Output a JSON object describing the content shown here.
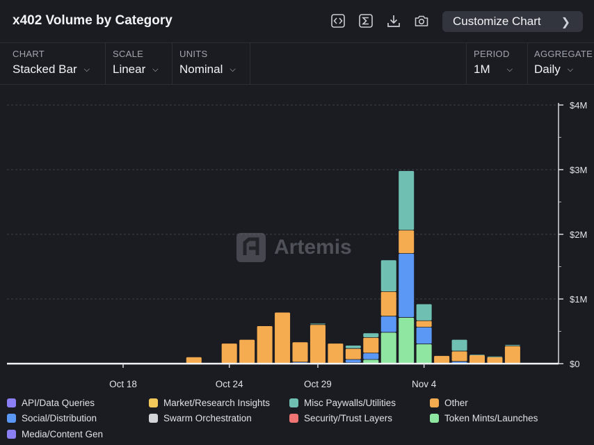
{
  "header": {
    "title": "x402 Volume by Category",
    "customize_label": "Customize Chart",
    "icons": [
      "code-icon",
      "sigma-icon",
      "download-icon",
      "camera-icon"
    ]
  },
  "controls": {
    "chart": {
      "label": "CHART",
      "value": "Stacked Bar"
    },
    "scale": {
      "label": "SCALE",
      "value": "Linear"
    },
    "units": {
      "label": "UNITS",
      "value": "Nominal"
    },
    "period": {
      "label": "PERIOD",
      "value": "1M"
    },
    "aggregate": {
      "label": "AGGREGATE",
      "value": "Daily"
    }
  },
  "watermark": {
    "text": "Artemis"
  },
  "legend": [
    {
      "name": "API/Data Queries",
      "color": "#8b7ff5"
    },
    {
      "name": "Market/Research Insights",
      "color": "#f2c85b"
    },
    {
      "name": "Misc Paywalls/Utilities",
      "color": "#6fbfb3"
    },
    {
      "name": "Other",
      "color": "#f5ab4f"
    },
    {
      "name": "Social/Distribution",
      "color": "#5b97f5"
    },
    {
      "name": "Swarm Orchestration",
      "color": "#d3d4d8"
    },
    {
      "name": "Security/Trust Layers",
      "color": "#ef7474"
    },
    {
      "name": "Token Mints/Launches",
      "color": "#8ee6a1"
    },
    {
      "name": "Media/Content Gen",
      "color": "#8b7ff5"
    }
  ],
  "chart_data": {
    "type": "bar",
    "stacked": true,
    "scale": "linear",
    "ylim": [
      0,
      4000000
    ],
    "y_ticks": [
      {
        "value": 0,
        "label": "$0"
      },
      {
        "value": 1000000,
        "label": "$1M"
      },
      {
        "value": 2000000,
        "label": "$2M"
      },
      {
        "value": 3000000,
        "label": "$3M"
      },
      {
        "value": 4000000,
        "label": "$4M"
      }
    ],
    "x_axis_labels": [
      {
        "date": "Oct 18",
        "label": "Oct 18"
      },
      {
        "date": "Oct 24",
        "label": "Oct 24"
      },
      {
        "date": "Oct 29",
        "label": "Oct 29"
      },
      {
        "date": "Nov 4",
        "label": "Nov 4"
      }
    ],
    "x": [
      "Oct 21",
      "Oct 22",
      "Oct 23",
      "Oct 24",
      "Oct 25",
      "Oct 26",
      "Oct 27",
      "Oct 28",
      "Oct 29",
      "Oct 30",
      "Oct 31",
      "Nov 1",
      "Nov 2",
      "Nov 3",
      "Nov 4",
      "Nov 5",
      "Nov 6",
      "Nov 7",
      "Nov 8",
      "Nov 9"
    ],
    "series": [
      {
        "name": "Token Mints/Launches",
        "color": "#8ee6a1",
        "values": [
          0,
          0,
          0,
          0,
          0,
          0,
          0,
          0,
          0,
          0,
          10000,
          60000,
          480000,
          710000,
          300000,
          0,
          0,
          0,
          0,
          0
        ]
      },
      {
        "name": "Social/Distribution",
        "color": "#5b97f5",
        "values": [
          0,
          0,
          0,
          0,
          0,
          0,
          0,
          20000,
          0,
          0,
          50000,
          100000,
          250000,
          990000,
          260000,
          0,
          30000,
          0,
          0,
          0
        ]
      },
      {
        "name": "Other",
        "color": "#f5ab4f",
        "values": [
          0,
          100000,
          0,
          310000,
          370000,
          580000,
          790000,
          310000,
          600000,
          310000,
          170000,
          240000,
          380000,
          360000,
          100000,
          120000,
          160000,
          130000,
          100000,
          270000
        ]
      },
      {
        "name": "Misc Paywalls/Utilities",
        "color": "#6fbfb3",
        "values": [
          0,
          0,
          0,
          0,
          0,
          0,
          0,
          0,
          20000,
          0,
          50000,
          70000,
          490000,
          920000,
          260000,
          0,
          180000,
          10000,
          10000,
          20000
        ]
      }
    ]
  }
}
